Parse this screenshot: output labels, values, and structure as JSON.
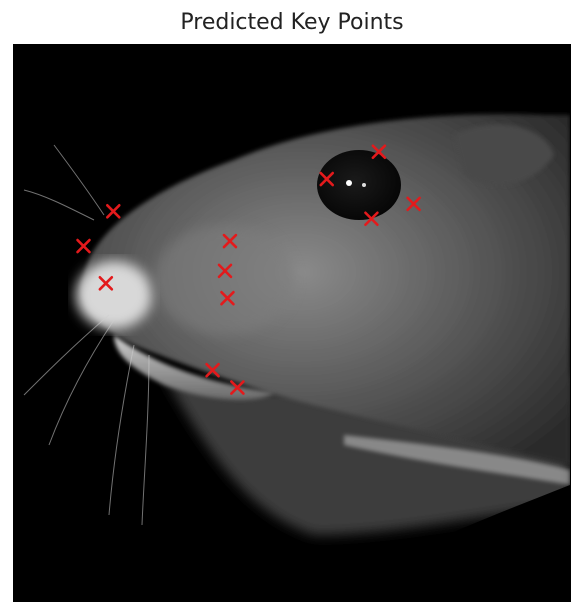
{
  "title": "Predicted Key Points",
  "marker": {
    "symbol": "x",
    "color": "#e31a1c"
  },
  "image_description_colors": {
    "background": "#000000",
    "fur_dark": "#3a3a3a",
    "fur_light": "#9a9a9a",
    "highlight": "#e8e8e8"
  },
  "chart_data": {
    "type": "scatter",
    "title": "Predicted Key Points",
    "xlabel": "",
    "ylabel": "",
    "x_range": [
      0,
      224
    ],
    "y_range": [
      0,
      224
    ],
    "y_inverted": true,
    "grid": false,
    "series": [
      {
        "marker": "x",
        "color": "#e31a1c",
        "points": [
          {
            "x": 40,
            "y": 67
          },
          {
            "x": 28,
            "y": 81
          },
          {
            "x": 37,
            "y": 96
          },
          {
            "x": 87,
            "y": 79
          },
          {
            "x": 85,
            "y": 91
          },
          {
            "x": 86,
            "y": 102
          },
          {
            "x": 80,
            "y": 131
          },
          {
            "x": 90,
            "y": 138
          },
          {
            "x": 126,
            "y": 54
          },
          {
            "x": 147,
            "y": 43
          },
          {
            "x": 144,
            "y": 70
          },
          {
            "x": 161,
            "y": 64
          }
        ]
      }
    ]
  }
}
